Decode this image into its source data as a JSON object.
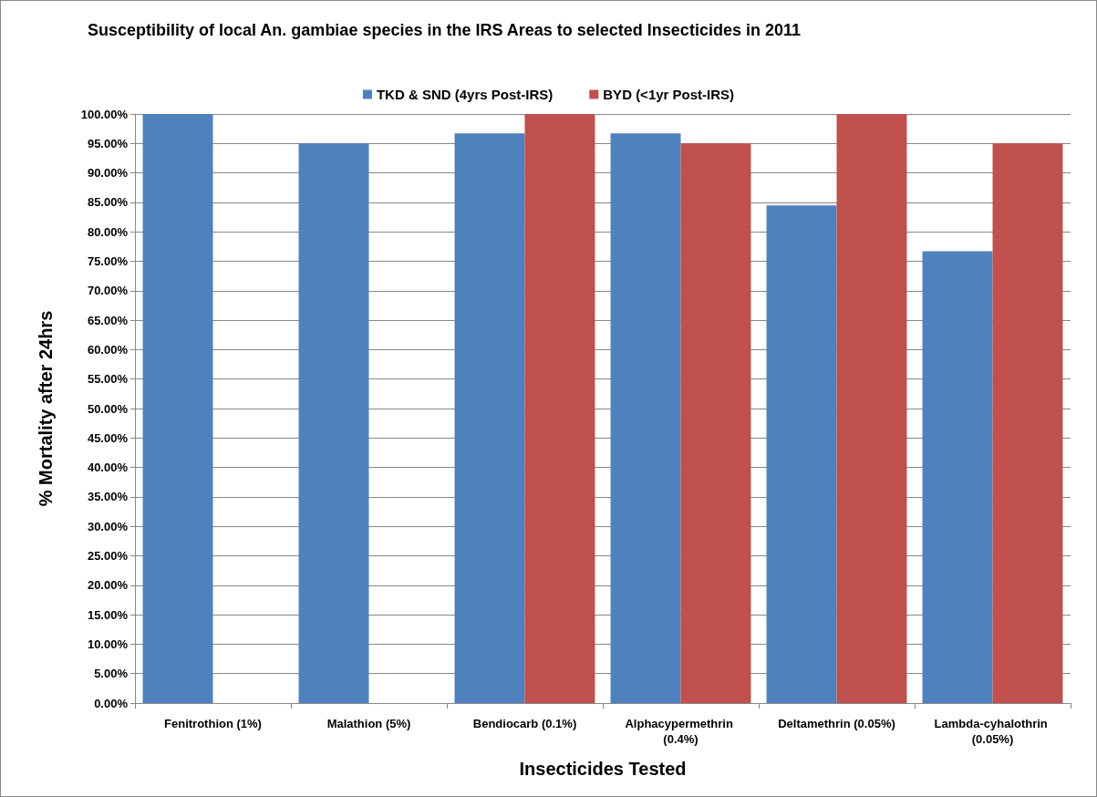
{
  "chart_data": {
    "type": "bar",
    "title": "Susceptibility of local An. gambiae species in the IRS Areas to selected Insecticides in 2011",
    "xlabel": "Insecticides Tested",
    "ylabel": "% Mortality after 24hrs",
    "categories": [
      "Fenitrothion (1%)",
      "Malathion (5%)",
      "Bendiocarb (0.1%)",
      "Alphacypermethrin (0.4%)",
      "Deltamethrin (0.05%)",
      "Lambda-cyhalothrin (0.05%)"
    ],
    "series": [
      {
        "name": "TKD & SND (4yrs Post-IRS)",
        "color": "#4f81bd",
        "values": [
          100,
          95,
          96.7,
          96.7,
          84.5,
          76.7
        ]
      },
      {
        "name": "BYD (<1yr Post-IRS)",
        "color": "#c0504d",
        "values": [
          null,
          null,
          100,
          95,
          100,
          95
        ]
      }
    ],
    "ylim": [
      0,
      100
    ],
    "yticks": [
      {
        "value": 0,
        "label": "0.00%"
      },
      {
        "value": 5,
        "label": "5.00%"
      },
      {
        "value": 10,
        "label": "10.00%"
      },
      {
        "value": 15,
        "label": "15.00%"
      },
      {
        "value": 20,
        "label": "20.00%"
      },
      {
        "value": 25,
        "label": "25.00%"
      },
      {
        "value": 30,
        "label": "30.00%"
      },
      {
        "value": 35,
        "label": "35.00%"
      },
      {
        "value": 40,
        "label": "40.00%"
      },
      {
        "value": 45,
        "label": "45.00%"
      },
      {
        "value": 50,
        "label": "50.00%"
      },
      {
        "value": 55,
        "label": "55.00%"
      },
      {
        "value": 60,
        "label": "60.00%"
      },
      {
        "value": 65,
        "label": "65.00%"
      },
      {
        "value": 70,
        "label": "70.00%"
      },
      {
        "value": 75,
        "label": "75.00%"
      },
      {
        "value": 80,
        "label": "80.00%"
      },
      {
        "value": 85,
        "label": "85.00%"
      },
      {
        "value": 90,
        "label": "90.00%"
      },
      {
        "value": 95,
        "label": "95.00%"
      },
      {
        "value": 100,
        "label": "100.00%"
      }
    ],
    "grid": "y",
    "legend": "top"
  }
}
